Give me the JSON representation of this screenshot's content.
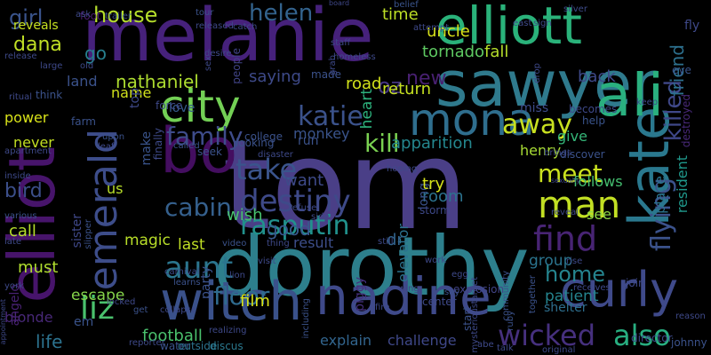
{
  "words": [
    {
      "text": "tom",
      "color": "#4a3f87"
    },
    {
      "text": "dorothy",
      "color": "#2d7f8c"
    },
    {
      "text": "melanie",
      "color": "#46217b"
    },
    {
      "text": "sawyer",
      "color": "#2f7a8d"
    },
    {
      "text": "elliott",
      "color": "#2ab27a"
    },
    {
      "text": "elliot",
      "color": "#47146b"
    },
    {
      "text": "witch",
      "color": "#3a518a"
    },
    {
      "text": "nadine",
      "color": "#3f4a8a"
    },
    {
      "text": "curly",
      "color": "#3f4a8a"
    },
    {
      "text": "kate",
      "color": "#2a788e"
    },
    {
      "text": "bo",
      "color": "#440e60"
    },
    {
      "text": "ali",
      "color": "#2ab07f"
    },
    {
      "text": "mona",
      "color": "#2f6e8e"
    },
    {
      "text": "city",
      "color": "#73d055"
    },
    {
      "text": "emerald",
      "color": "#3d4d8a"
    },
    {
      "text": "destiny",
      "color": "#3e4a89"
    },
    {
      "text": "rasputin",
      "color": "#21918c"
    },
    {
      "text": "aunt",
      "color": "#2b758e"
    },
    {
      "text": "liz",
      "color": "#4ac16d"
    },
    {
      "text": "take",
      "color": "#3a548c"
    },
    {
      "text": "man",
      "color": "#c2df23"
    },
    {
      "text": "find",
      "color": "#482474"
    },
    {
      "text": "away",
      "color": "#c8e020"
    },
    {
      "text": "katie",
      "color": "#3b528b"
    },
    {
      "text": "family",
      "color": "#3e4c8a"
    },
    {
      "text": "cabin",
      "color": "#35608d"
    },
    {
      "text": "floor",
      "color": "#2f6b8e"
    },
    {
      "text": "wicked",
      "color": "#46307e"
    },
    {
      "text": "also",
      "color": "#28ae80"
    },
    {
      "text": "meet",
      "color": "#cae11f"
    },
    {
      "text": "home",
      "color": "#25848e"
    },
    {
      "text": "flying",
      "color": "#3b528b"
    },
    {
      "text": "killed",
      "color": "#3f4889"
    },
    {
      "text": "friend",
      "color": "#2d708e"
    },
    {
      "text": "house",
      "color": "#b5de2b"
    },
    {
      "text": "girl",
      "color": "#3a548c"
    },
    {
      "text": "dana",
      "color": "#c0df25"
    },
    {
      "text": "helen",
      "color": "#33638d"
    },
    {
      "text": "oz",
      "color": "#453581"
    },
    {
      "text": "new",
      "color": "#482071"
    },
    {
      "text": "kill",
      "color": "#7ad151"
    },
    {
      "text": "good",
      "color": "#38588c"
    },
    {
      "text": "bird",
      "color": "#3c4f8a"
    },
    {
      "text": "go",
      "color": "#277f8e"
    },
    {
      "text": "back",
      "color": "#3e4989"
    },
    {
      "text": "tornado",
      "color": "#5ec962"
    },
    {
      "text": "fall",
      "color": "#b5de2b"
    },
    {
      "text": "nathaniel",
      "color": "#addc30"
    },
    {
      "text": "heart",
      "color": "#2db27d"
    },
    {
      "text": "time",
      "color": "#bddf26"
    },
    {
      "text": "uncle",
      "color": "#d8e219"
    },
    {
      "text": "road",
      "color": "#d2e21b"
    },
    {
      "text": "return",
      "color": "#c5e021"
    },
    {
      "text": "apparition",
      "color": "#24878e"
    },
    {
      "text": "saying",
      "color": "#3e4a89"
    },
    {
      "text": "wish",
      "color": "#48c16e"
    },
    {
      "text": "want",
      "color": "#3e4a89"
    },
    {
      "text": "magic",
      "color": "#b8de29"
    },
    {
      "text": "last",
      "color": "#c0df25"
    },
    {
      "text": "film",
      "color": "#d8e219"
    },
    {
      "text": "call",
      "color": "#b5de2b"
    },
    {
      "text": "must",
      "color": "#b0dd2f"
    },
    {
      "text": "escape",
      "color": "#85d54a"
    },
    {
      "text": "life",
      "color": "#2c728e"
    },
    {
      "text": "group",
      "color": "#2b748e"
    },
    {
      "text": "patient",
      "color": "#25848e"
    },
    {
      "text": "henry",
      "color": "#a8db34"
    },
    {
      "text": "give",
      "color": "#35b779"
    },
    {
      "text": "see",
      "color": "#8fd744"
    },
    {
      "text": "follows",
      "color": "#44bf70"
    },
    {
      "text": "place",
      "color": "#2b748e"
    },
    {
      "text": "resident",
      "color": "#1f988b"
    },
    {
      "text": "room",
      "color": "#2c728e"
    },
    {
      "text": "elevator",
      "color": "#2c728e"
    },
    {
      "text": "long",
      "color": "#3b528b"
    },
    {
      "text": "try",
      "color": "#d5e21a"
    },
    {
      "text": "result",
      "color": "#3d4e8a"
    },
    {
      "text": "explain",
      "color": "#32658e"
    },
    {
      "text": "challenge",
      "color": "#3f4889"
    },
    {
      "text": "land",
      "color": "#3b528b"
    },
    {
      "text": "name",
      "color": "#d0e11c"
    },
    {
      "text": "power",
      "color": "#d8e219"
    },
    {
      "text": "never",
      "color": "#c2df23"
    },
    {
      "text": "us",
      "color": "#b8de29"
    },
    {
      "text": "reveals",
      "color": "#c5e021"
    },
    {
      "text": "top",
      "color": "#3e4989"
    },
    {
      "text": "make",
      "color": "#3a548c"
    },
    {
      "text": "monkey",
      "color": "#3a548c"
    },
    {
      "text": "love",
      "color": "#365c8d"
    },
    {
      "text": "run",
      "color": "#3b528b"
    },
    {
      "text": "miss",
      "color": "#3e4c8a"
    },
    {
      "text": "shelter",
      "color": "#2e6f8e"
    },
    {
      "text": "piggy",
      "color": "#46307e"
    },
    {
      "text": "sister",
      "color": "#3f4889"
    },
    {
      "text": "party",
      "color": "#3b528b"
    },
    {
      "text": "em",
      "color": "#3a548c"
    },
    {
      "text": "wing",
      "color": "#414487"
    },
    {
      "text": "dr",
      "color": "#32658e"
    },
    {
      "text": "storm",
      "color": "#3e4989"
    },
    {
      "text": "blonde",
      "color": "#482878"
    },
    {
      "text": "angelo",
      "color": "#482173"
    },
    {
      "text": "football",
      "color": "#4ac16d"
    },
    {
      "text": "water",
      "color": "#3b528b"
    },
    {
      "text": "outside",
      "color": "#2c728e"
    },
    {
      "text": "discus",
      "color": "#2a788e"
    },
    {
      "text": "explosion",
      "color": "#414487"
    },
    {
      "text": "finally",
      "color": "#3e4a89"
    },
    {
      "text": "people",
      "color": "#414487"
    },
    {
      "text": "tour",
      "color": "#3b528b"
    },
    {
      "text": "foot",
      "color": "#481c6e"
    },
    {
      "text": "trailer",
      "color": "#3b528b"
    },
    {
      "text": "catch",
      "color": "#3e4a89"
    },
    {
      "text": "board",
      "color": "#3f4889"
    },
    {
      "text": "belief",
      "color": "#3a548c"
    },
    {
      "text": "silver",
      "color": "#3e4c8a"
    },
    {
      "text": "fly",
      "color": "#3e4989"
    },
    {
      "text": "eye",
      "color": "#3a548c"
    },
    {
      "text": "college",
      "color": "#3b528b"
    },
    {
      "text": "force",
      "color": "#3e4989"
    },
    {
      "text": "made",
      "color": "#3b528b"
    },
    {
      "text": "help",
      "color": "#3a548c"
    },
    {
      "text": "becomes",
      "color": "#3e4989"
    },
    {
      "text": "destroyed",
      "color": "#482878"
    },
    {
      "text": "discover",
      "color": "#3b528b"
    },
    {
      "text": "apartment",
      "color": "#3e4989"
    },
    {
      "text": "inside",
      "color": "#3e4989"
    },
    {
      "text": "various",
      "color": "#3b528b"
    },
    {
      "text": "late",
      "color": "#3e4989"
    },
    {
      "text": "york",
      "color": "#3e4989"
    },
    {
      "text": "ritual",
      "color": "#3e4989"
    },
    {
      "text": "release",
      "color": "#3e4989"
    },
    {
      "text": "think",
      "color": "#3b528b"
    },
    {
      "text": "farm",
      "color": "#3b528b"
    },
    {
      "text": "upon",
      "color": "#3b528b"
    },
    {
      "text": "looking",
      "color": "#3b528b"
    },
    {
      "text": "disaster",
      "color": "#3e4989"
    },
    {
      "text": "seek",
      "color": "#3b528b"
    },
    {
      "text": "called",
      "color": "#3b528b"
    },
    {
      "text": "slipper",
      "color": "#3b528b"
    },
    {
      "text": "thing",
      "color": "#3e4989"
    },
    {
      "text": "video",
      "color": "#3b528b"
    },
    {
      "text": "lion",
      "color": "#3e4989"
    },
    {
      "text": "learns",
      "color": "#3b528b"
    },
    {
      "text": "locked",
      "color": "#3e4989"
    },
    {
      "text": "get",
      "color": "#3b528b"
    },
    {
      "text": "collapse",
      "color": "#3e4989"
    },
    {
      "text": "say",
      "color": "#3b528b"
    },
    {
      "text": "center",
      "color": "#3e4989"
    },
    {
      "text": "fire",
      "color": "#3e4989"
    },
    {
      "text": "including",
      "color": "#3b528b"
    },
    {
      "text": "target",
      "color": "#3e4989"
    },
    {
      "text": "ruby",
      "color": "#3b528b"
    },
    {
      "text": "join",
      "color": "#3e4989"
    },
    {
      "text": "director",
      "color": "#3e4989"
    },
    {
      "text": "johnny",
      "color": "#3b528b"
    },
    {
      "text": "original",
      "color": "#3e4989"
    },
    {
      "text": "start",
      "color": "#3b528b"
    },
    {
      "text": "community",
      "color": "#3b528b"
    },
    {
      "text": "together",
      "color": "#3b528b"
    },
    {
      "text": "mysterious",
      "color": "#3e4989"
    },
    {
      "text": "sexually",
      "color": "#3e4989"
    },
    {
      "text": "hoping",
      "color": "#3e4989"
    },
    {
      "text": "refuse",
      "color": "#3e4989"
    },
    {
      "text": "side",
      "color": "#3e4989"
    },
    {
      "text": "visit",
      "color": "#3e4989"
    },
    {
      "text": "reporter",
      "color": "#3e4989"
    },
    {
      "text": "appointment",
      "color": "#3e4989"
    },
    {
      "text": "ask",
      "color": "#3e4989"
    },
    {
      "text": "released",
      "color": "#3e4989"
    },
    {
      "text": "desire",
      "color": "#3e4989"
    },
    {
      "text": "homeless",
      "color": "#3e4989"
    },
    {
      "text": "attempt",
      "color": "#3e4989"
    },
    {
      "text": "east",
      "color": "#3e4989"
    },
    {
      "text": "sign",
      "color": "#3e4989"
    },
    {
      "text": "drop",
      "color": "#3e4989"
    },
    {
      "text": "keep",
      "color": "#3e4989"
    },
    {
      "text": "receives",
      "color": "#3e4989"
    },
    {
      "text": "reason",
      "color": "#3e4989"
    },
    {
      "text": "still",
      "color": "#3e4989"
    },
    {
      "text": "work",
      "color": "#3e4989"
    },
    {
      "text": "egg",
      "color": "#3e4989"
    },
    {
      "text": "abe",
      "color": "#3e4989"
    },
    {
      "text": "talk",
      "color": "#3e4989"
    },
    {
      "text": "reveal",
      "color": "#3e4989"
    },
    {
      "text": "brings",
      "color": "#3e4989"
    },
    {
      "text": "leaf",
      "color": "#3e4989"
    },
    {
      "text": "carnival",
      "color": "#3e4989"
    },
    {
      "text": "realizing",
      "color": "#3e4989"
    },
    {
      "text": "sex",
      "color": "#3e4989"
    },
    {
      "text": "grab",
      "color": "#3e4989"
    },
    {
      "text": "staff",
      "color": "#3e4989"
    },
    {
      "text": "old",
      "color": "#3e4989"
    },
    {
      "text": "large",
      "color": "#3e4989"
    },
    {
      "text": "rise",
      "color": "#3e4989"
    }
  ]
}
